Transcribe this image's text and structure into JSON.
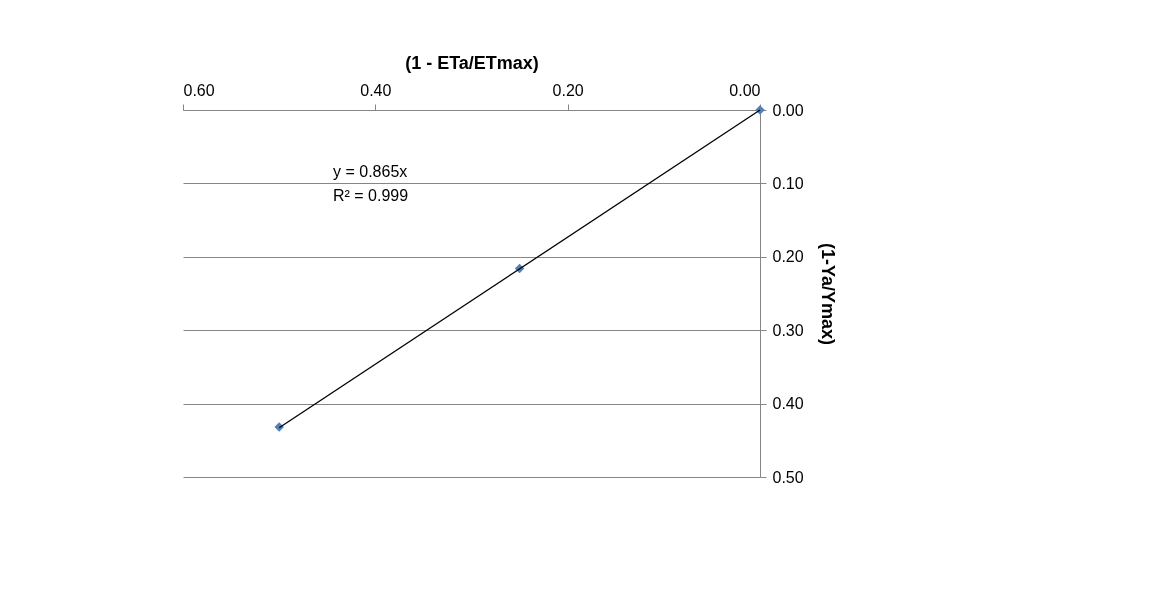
{
  "chart_data": {
    "type": "scatter",
    "xlabel": "(1 - ETa/ETmax)",
    "ylabel": "(1-Ya/Ymax)",
    "series": [
      {
        "color": "#4f81bd",
        "x": [
          0,
          0.25,
          0.5
        ],
        "values": [
          0,
          0.216,
          0.432
        ],
        "marker": "diamond"
      },
      {
        "type": "line",
        "color": "#000000",
        "x": [
          0,
          0.5
        ],
        "values": [
          0,
          0.433
        ],
        "marker": "none"
      }
    ],
    "xlim": [
      0.6,
      0
    ],
    "ylim": [
      0.5,
      0
    ],
    "xticks": [
      {
        "value": 0.6,
        "label": "0.60"
      },
      {
        "value": 0.4,
        "label": "0.40"
      },
      {
        "value": 0.2,
        "label": "0.20"
      },
      {
        "value": 0,
        "label": "0.00"
      }
    ],
    "yticks": [
      {
        "value": 0,
        "label": "0.00"
      },
      {
        "value": 0.1,
        "label": "0.10"
      },
      {
        "value": 0.2,
        "label": "0.20"
      },
      {
        "value": 0.3,
        "label": "0.30"
      },
      {
        "value": 0.4,
        "label": "0.40"
      },
      {
        "value": 0.5,
        "label": "0.50"
      }
    ],
    "annotations": [
      "y = 0.865x",
      "R² = 0.999"
    ],
    "grid": "y"
  }
}
